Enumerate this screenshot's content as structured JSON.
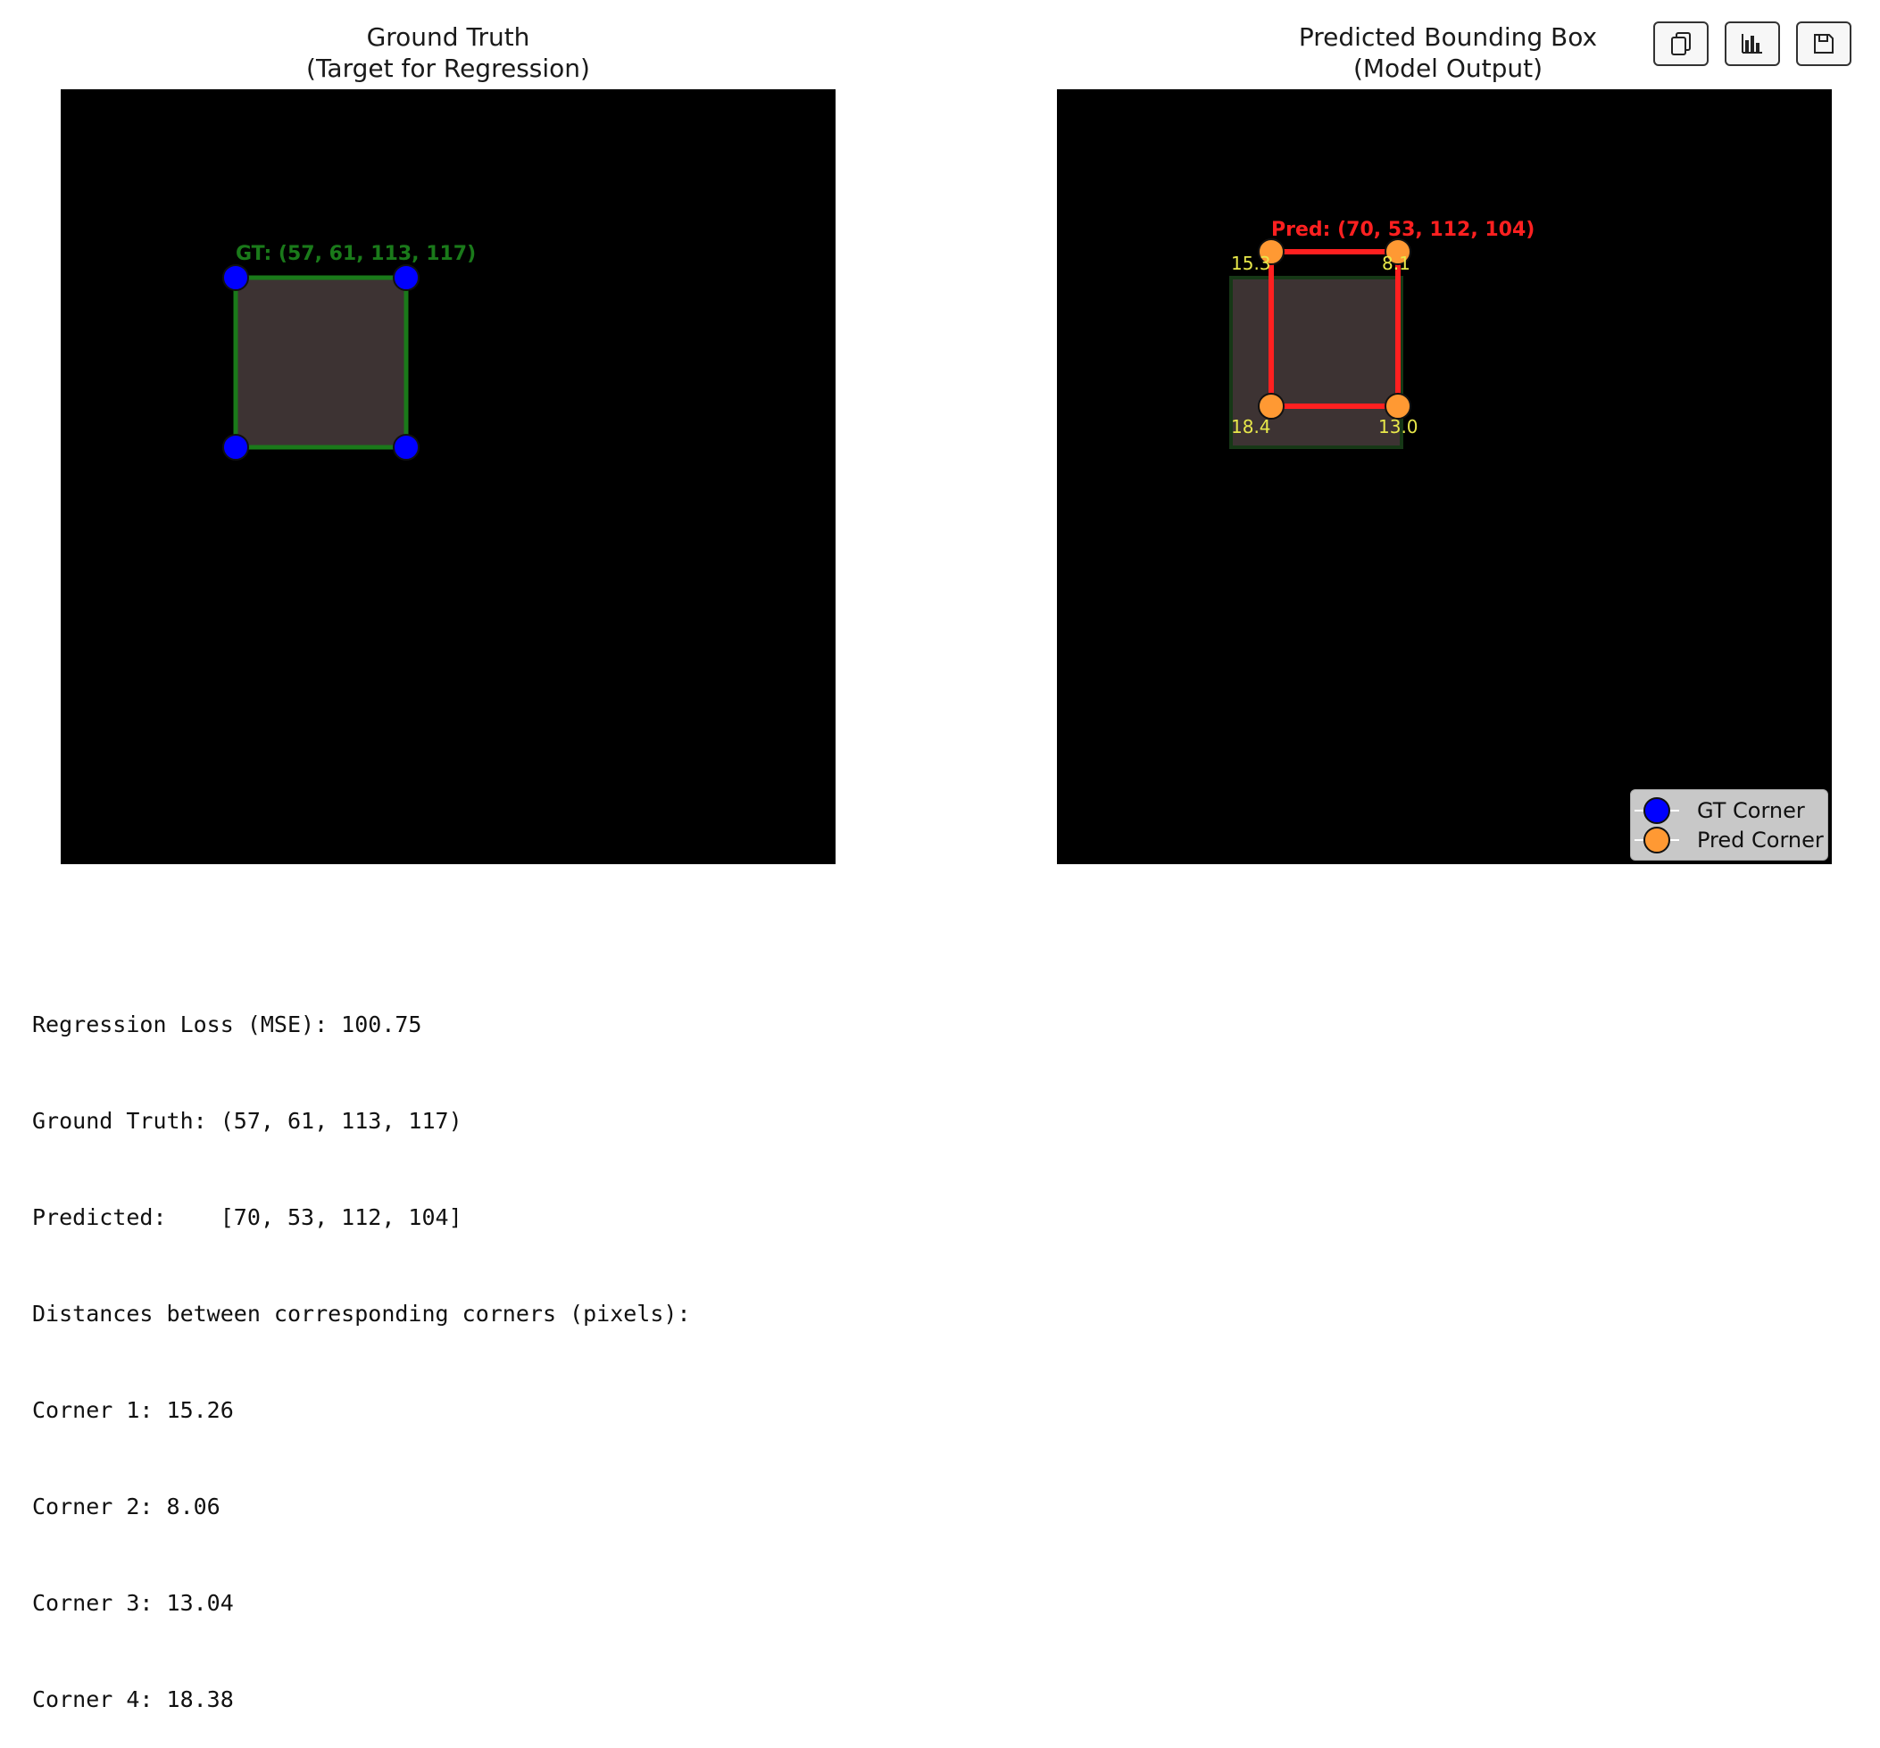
{
  "left_panel": {
    "title_line1": "Ground Truth",
    "title_line2": "(Target for Regression)",
    "box_label": "GT: (57, 61, 113, 117)"
  },
  "right_panel": {
    "title_line1": "Predicted Bounding Box",
    "title_line2": "(Model Output)",
    "box_label": "Pred: (70, 53, 112, 104)",
    "corner_distance_labels": [
      "15.3",
      "8.1",
      "18.4",
      "13.0"
    ]
  },
  "toolbar": {
    "buttons": [
      {
        "name": "copy-button",
        "icon": "copy-icon"
      },
      {
        "name": "chart-button",
        "icon": "bar-chart-icon"
      },
      {
        "name": "save-button",
        "icon": "save-icon"
      }
    ]
  },
  "legend": {
    "items": [
      {
        "label": "GT Corner",
        "color": "#0000ff"
      },
      {
        "label": "Pred Corner",
        "color": "#ff9933"
      }
    ]
  },
  "stats": {
    "loss": "Regression Loss (MSE): 100.75",
    "ground_truth": "Ground Truth: (57, 61, 113, 117)",
    "predicted": "Predicted:    [70, 53, 112, 104]",
    "distances_header": "Distances between corresponding corners (pixels):",
    "corners": [
      "Corner 1: 15.26",
      "Corner 2: 8.06",
      "Corner 3: 13.04",
      "Corner 4: 18.38"
    ]
  },
  "colors": {
    "gt_box": "#1a7a1a",
    "pred_box": "#ff2020",
    "box_fill": "#3d3333",
    "gt_corner": "#0000ff",
    "pred_corner": "#ff9933",
    "distance_label": "#e8e84a"
  }
}
